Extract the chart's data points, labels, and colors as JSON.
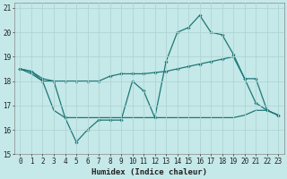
{
  "xlabel": "Humidex (Indice chaleur)",
  "background_color": "#c5e8e8",
  "grid_color": "#b0d4d4",
  "line_color": "#1e7878",
  "x": [
    0,
    1,
    2,
    3,
    4,
    5,
    6,
    7,
    8,
    9,
    10,
    11,
    12,
    13,
    14,
    15,
    16,
    17,
    18,
    19,
    20,
    21,
    22,
    23
  ],
  "line1": [
    18.5,
    18.4,
    18.0,
    18.0,
    16.5,
    15.5,
    16.0,
    16.4,
    16.4,
    16.4,
    18.0,
    17.6,
    16.5,
    18.8,
    20.0,
    20.2,
    20.7,
    20.0,
    19.9,
    19.1,
    18.1,
    17.1,
    16.8,
    16.6
  ],
  "line2_x": [
    0,
    1,
    2,
    3,
    4,
    5,
    6,
    7,
    8,
    9,
    10,
    11,
    12,
    13,
    14,
    15,
    16,
    17,
    18,
    19,
    20,
    21,
    22,
    23
  ],
  "line2": [
    18.5,
    18.4,
    18.1,
    18.0,
    18.0,
    18.0,
    18.0,
    18.0,
    18.2,
    18.3,
    18.3,
    18.3,
    18.35,
    18.4,
    18.5,
    18.6,
    18.7,
    18.8,
    18.9,
    19.0,
    18.1,
    18.1,
    16.8,
    16.6
  ],
  "line3_x": [
    0,
    1,
    2,
    3,
    4,
    5,
    6,
    7,
    8,
    9,
    10,
    11,
    12,
    13,
    14,
    15,
    16,
    17,
    18,
    19,
    20,
    21,
    22,
    23
  ],
  "line3": [
    18.5,
    18.3,
    18.0,
    16.8,
    16.5,
    16.5,
    16.5,
    16.5,
    16.5,
    16.5,
    16.5,
    16.5,
    16.5,
    16.5,
    16.5,
    16.5,
    16.5,
    16.5,
    16.5,
    16.5,
    16.6,
    16.8,
    16.8,
    16.6
  ],
  "ylim": [
    15,
    21.2
  ],
  "xlim": [
    -0.5,
    23.5
  ],
  "yticks": [
    15,
    16,
    17,
    18,
    19,
    20,
    21
  ],
  "xticks": [
    0,
    1,
    2,
    3,
    4,
    5,
    6,
    7,
    8,
    9,
    10,
    11,
    12,
    13,
    14,
    15,
    16,
    17,
    18,
    19,
    20,
    21,
    22,
    23
  ],
  "tick_fontsize": 5.5,
  "xlabel_fontsize": 6.5
}
